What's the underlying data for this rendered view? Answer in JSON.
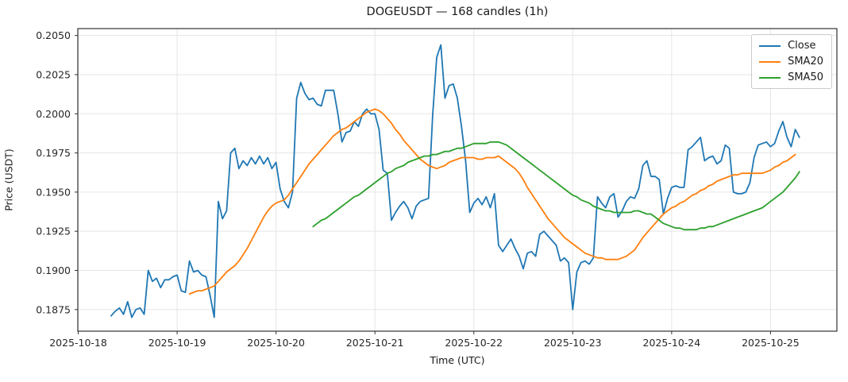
{
  "title": "DOGEUSDT — 168 candles (1h)",
  "xlabel": "Time (UTC)",
  "ylabel": "Price (USDT)",
  "chart_data": {
    "type": "line",
    "title": "DOGEUSDT — 168 candles (1h)",
    "xlabel": "Time (UTC)",
    "ylabel": "Price (USDT)",
    "symbol": "DOGEUSDT",
    "interval": "1h",
    "candles": 168,
    "grid": true,
    "legend_position": "upper right",
    "background": "#ffffff",
    "grid_color": "#e5e5e5",
    "spine_color": "#333333",
    "text_color": "#262626",
    "xlim": [
      -8.1,
      176.1
    ],
    "ylim": [
      0.18612,
      0.20544
    ],
    "x_ticks": [
      {
        "label": "2025-10-18",
        "idx": -8
      },
      {
        "label": "2025-10-19",
        "idx": 16
      },
      {
        "label": "2025-10-20",
        "idx": 40
      },
      {
        "label": "2025-10-21",
        "idx": 64
      },
      {
        "label": "2025-10-22",
        "idx": 88
      },
      {
        "label": "2025-10-23",
        "idx": 112
      },
      {
        "label": "2025-10-24",
        "idx": 136
      },
      {
        "label": "2025-10-25",
        "idx": 160
      }
    ],
    "y_ticks": [
      {
        "label": "0.1875",
        "value": 0.1875
      },
      {
        "label": "0.1900",
        "value": 0.19
      },
      {
        "label": "0.1925",
        "value": 0.1925
      },
      {
        "label": "0.1950",
        "value": 0.195
      },
      {
        "label": "0.1975",
        "value": 0.1975
      },
      {
        "label": "0.2000",
        "value": 0.2
      },
      {
        "label": "0.2025",
        "value": 0.2025
      },
      {
        "label": "0.2050",
        "value": 0.205
      }
    ],
    "x_start": "2025-10-18 08:00",
    "x_end": "2025-10-25 07:00",
    "series": [
      {
        "name": "Close",
        "color": "#1f77b4",
        "width": 1.8,
        "values": [
          0.1871,
          0.1874,
          0.1876,
          0.1872,
          0.188,
          0.187,
          0.1875,
          0.1876,
          0.1872,
          0.19,
          0.1893,
          0.1895,
          0.1889,
          0.1894,
          0.1894,
          0.1896,
          0.1897,
          0.1887,
          0.1886,
          0.1906,
          0.1899,
          0.19,
          0.1897,
          0.1896,
          0.1884,
          0.187,
          0.1944,
          0.1933,
          0.1938,
          0.1975,
          0.1978,
          0.1965,
          0.197,
          0.1967,
          0.1972,
          0.1968,
          0.1973,
          0.1968,
          0.1972,
          0.1965,
          0.1969,
          0.1952,
          0.1944,
          0.194,
          0.195,
          0.201,
          0.202,
          0.2013,
          0.2009,
          0.201,
          0.2006,
          0.2005,
          0.2015,
          0.2015,
          0.2015,
          0.2,
          0.1982,
          0.1988,
          0.1989,
          0.1995,
          0.1992,
          0.2,
          0.2003,
          0.2,
          0.2,
          0.199,
          0.1964,
          0.1962,
          0.1932,
          0.1937,
          0.1941,
          0.1944,
          0.194,
          0.1933,
          0.1941,
          0.1944,
          0.1945,
          0.1946,
          0.1999,
          0.2036,
          0.2044,
          0.201,
          0.2018,
          0.2019,
          0.201,
          0.1992,
          0.197,
          0.1937,
          0.1943,
          0.1946,
          0.1942,
          0.1947,
          0.194,
          0.1949,
          0.1916,
          0.1912,
          0.1916,
          0.192,
          0.1914,
          0.1909,
          0.1901,
          0.1911,
          0.1912,
          0.1909,
          0.1923,
          0.1925,
          0.1922,
          0.1919,
          0.1916,
          0.1906,
          0.1908,
          0.1905,
          0.1875,
          0.1899,
          0.1905,
          0.1906,
          0.1904,
          0.1908,
          0.1947,
          0.1943,
          0.194,
          0.1947,
          0.1949,
          0.1934,
          0.1938,
          0.1944,
          0.1947,
          0.1946,
          0.1952,
          0.1967,
          0.197,
          0.196,
          0.196,
          0.1958,
          0.1936,
          0.1946,
          0.1953,
          0.1954,
          0.1953,
          0.1953,
          0.1977,
          0.1979,
          0.1982,
          0.1985,
          0.197,
          0.1972,
          0.1973,
          0.1968,
          0.197,
          0.198,
          0.1978,
          0.195,
          0.1949,
          0.1949,
          0.195,
          0.1956,
          0.1972,
          0.198,
          0.1981,
          0.1982,
          0.1979,
          0.1981,
          0.1989,
          0.1995,
          0.1985,
          0.1979,
          0.199,
          0.1985
        ]
      },
      {
        "name": "SMA20",
        "color": "#ff7f0e",
        "width": 1.8,
        "values": [
          null,
          null,
          null,
          null,
          null,
          null,
          null,
          null,
          null,
          null,
          null,
          null,
          null,
          null,
          null,
          null,
          null,
          null,
          null,
          0.1885,
          0.1886,
          0.1887,
          0.1887,
          0.1888,
          0.1889,
          0.189,
          0.1893,
          0.1896,
          0.1899,
          0.1901,
          0.1903,
          0.1906,
          0.191,
          0.1914,
          0.1919,
          0.1924,
          0.1929,
          0.1934,
          0.1938,
          0.1941,
          0.1943,
          0.1944,
          0.1945,
          0.1948,
          0.1952,
          0.1956,
          0.196,
          0.1964,
          0.1968,
          0.1971,
          0.1974,
          0.1977,
          0.198,
          0.1983,
          0.1986,
          0.1988,
          0.199,
          0.1991,
          0.1993,
          0.1995,
          0.1997,
          0.1999,
          0.2001,
          0.2002,
          0.2003,
          0.2002,
          0.2,
          0.1997,
          0.1994,
          0.199,
          0.1987,
          0.1983,
          0.198,
          0.1977,
          0.1974,
          0.1971,
          0.1969,
          0.1967,
          0.1966,
          0.1965,
          0.1966,
          0.1967,
          0.1969,
          0.197,
          0.1971,
          0.1972,
          0.1972,
          0.1972,
          0.1972,
          0.1971,
          0.1971,
          0.1972,
          0.1972,
          0.1972,
          0.1973,
          0.1971,
          0.1969,
          0.1967,
          0.1965,
          0.1962,
          0.1958,
          0.1953,
          0.1949,
          0.1945,
          0.1941,
          0.1937,
          0.1933,
          0.193,
          0.1927,
          0.1924,
          0.1921,
          0.1919,
          0.1917,
          0.1915,
          0.1913,
          0.1911,
          0.191,
          0.1909,
          0.1908,
          0.1908,
          0.1907,
          0.1907,
          0.1907,
          0.1907,
          0.1908,
          0.1909,
          0.1911,
          0.1913,
          0.1917,
          0.1921,
          0.1924,
          0.1927,
          0.193,
          0.1933,
          0.1936,
          0.1938,
          0.194,
          0.1941,
          0.1943,
          0.1944,
          0.1946,
          0.1948,
          0.1949,
          0.1951,
          0.1952,
          0.1954,
          0.1955,
          0.1957,
          0.1958,
          0.1959,
          0.196,
          0.1961,
          0.1961,
          0.1962,
          0.1962,
          0.1962,
          0.1962,
          0.1962,
          0.1962,
          0.1963,
          0.1964,
          0.1966,
          0.1967,
          0.1969,
          0.197,
          0.1972,
          0.1974
        ]
      },
      {
        "name": "SMA50",
        "color": "#2ca02c",
        "width": 1.8,
        "values": [
          null,
          null,
          null,
          null,
          null,
          null,
          null,
          null,
          null,
          null,
          null,
          null,
          null,
          null,
          null,
          null,
          null,
          null,
          null,
          null,
          null,
          null,
          null,
          null,
          null,
          null,
          null,
          null,
          null,
          null,
          null,
          null,
          null,
          null,
          null,
          null,
          null,
          null,
          null,
          null,
          null,
          null,
          null,
          null,
          null,
          null,
          null,
          null,
          null,
          0.1928,
          0.193,
          0.1932,
          0.1933,
          0.1935,
          0.1937,
          0.1939,
          0.1941,
          0.1943,
          0.1945,
          0.1947,
          0.1948,
          0.195,
          0.1952,
          0.1954,
          0.1956,
          0.1958,
          0.196,
          0.1962,
          0.1963,
          0.1965,
          0.1966,
          0.1967,
          0.1969,
          0.197,
          0.1971,
          0.1972,
          0.1973,
          0.1973,
          0.1974,
          0.1974,
          0.1975,
          0.1976,
          0.1976,
          0.1977,
          0.1978,
          0.1978,
          0.1979,
          0.198,
          0.1981,
          0.1981,
          0.1981,
          0.1981,
          0.1982,
          0.1982,
          0.1982,
          0.1981,
          0.198,
          0.1978,
          0.1976,
          0.1974,
          0.1972,
          0.197,
          0.1968,
          0.1966,
          0.1964,
          0.1962,
          0.196,
          0.1958,
          0.1956,
          0.1954,
          0.1952,
          0.195,
          0.1948,
          0.1947,
          0.1945,
          0.1944,
          0.1943,
          0.1941,
          0.194,
          0.1939,
          0.1938,
          0.1938,
          0.1937,
          0.1937,
          0.1937,
          0.1937,
          0.1937,
          0.1938,
          0.1938,
          0.1937,
          0.1936,
          0.1936,
          0.1934,
          0.1932,
          0.193,
          0.1929,
          0.1928,
          0.1927,
          0.1927,
          0.1926,
          0.1926,
          0.1926,
          0.1926,
          0.1927,
          0.1927,
          0.1928,
          0.1928,
          0.1929,
          0.193,
          0.1931,
          0.1932,
          0.1933,
          0.1934,
          0.1935,
          0.1936,
          0.1937,
          0.1938,
          0.1939,
          0.194,
          0.1942,
          0.1944,
          0.1946,
          0.1948,
          0.195,
          0.1953,
          0.1956,
          0.1959,
          0.1963
        ]
      }
    ]
  }
}
